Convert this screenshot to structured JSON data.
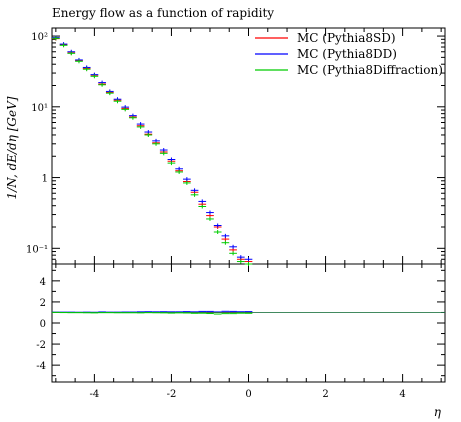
{
  "chart_data": {
    "type": "scatter",
    "title": "Energy flow as a function of rapidity",
    "xlabel": "η",
    "ylabel": "1/N, dE/dη [GeV]",
    "xlim": [
      -5.1,
      5.1
    ],
    "ylim": [
      0.06,
      130
    ],
    "yscale": "log",
    "legend_position": "top-right",
    "x": [
      -5.0,
      -4.8,
      -4.6,
      -4.4,
      -4.2,
      -4.0,
      -3.8,
      -3.6,
      -3.4,
      -3.2,
      -3.0,
      -2.8,
      -2.6,
      -2.4,
      -2.2,
      -2.0,
      -1.8,
      -1.6,
      -1.4,
      -1.2,
      -1.0,
      -0.8,
      -0.6,
      -0.4,
      -0.2,
      0.0
    ],
    "series": [
      {
        "name": "MC (Pythia8SD)",
        "color": "#ff0000",
        "values": [
          92,
          75,
          58,
          45,
          35,
          28,
          21,
          16,
          12.4,
          9.5,
          7.2,
          5.4,
          4.1,
          3.1,
          2.3,
          1.7,
          1.25,
          0.88,
          0.62,
          0.42,
          0.29,
          0.2,
          0.135,
          0.095,
          0.07,
          0.065
        ]
      },
      {
        "name": "MC (Pythia8DD)",
        "color": "#0000ff",
        "values": [
          95,
          77,
          60,
          46,
          36,
          28.5,
          22,
          16.5,
          12.8,
          9.9,
          7.5,
          5.7,
          4.4,
          3.3,
          2.45,
          1.8,
          1.33,
          0.95,
          0.66,
          0.46,
          0.32,
          0.21,
          0.15,
          0.105,
          0.075,
          0.07
        ]
      },
      {
        "name": "MC (Pythia8Diffraction)",
        "color": "#00cc00",
        "values": [
          93,
          74,
          57,
          44,
          34,
          27,
          20.5,
          15.6,
          12,
          9.2,
          7,
          5.2,
          4,
          3,
          2.2,
          1.6,
          1.2,
          0.84,
          0.57,
          0.39,
          0.26,
          0.17,
          0.12,
          0.085,
          0.065,
          0.06
        ]
      }
    ],
    "ratio": {
      "ylim": [
        -5.6,
        5.6
      ],
      "yticks": [
        "4",
        "2",
        "0",
        "-2",
        "-4"
      ],
      "series": [
        {
          "name": "MC (Pythia8SD)",
          "color": "#ff0000",
          "values": [
            1,
            1,
            1,
            1,
            1,
            1,
            1,
            1,
            1,
            1,
            1,
            1,
            1,
            1,
            1,
            1,
            1,
            1,
            1,
            1,
            1,
            1,
            1,
            1,
            1,
            1
          ]
        },
        {
          "name": "MC (Pythia8DD)",
          "color": "#0000ff",
          "values": [
            1.03,
            1.03,
            1.03,
            1.02,
            1.03,
            1.02,
            1.05,
            1.03,
            1.03,
            1.04,
            1.04,
            1.06,
            1.07,
            1.06,
            1.07,
            1.06,
            1.06,
            1.08,
            1.06,
            1.1,
            1.1,
            1.05,
            1.11,
            1.1,
            1.07,
            1.08
          ]
        },
        {
          "name": "MC (Pythia8Diffraction)",
          "color": "#00cc00",
          "values": [
            1.01,
            0.99,
            0.98,
            0.98,
            0.97,
            0.96,
            0.98,
            0.98,
            0.97,
            0.97,
            0.97,
            0.96,
            0.98,
            0.97,
            0.96,
            0.94,
            0.96,
            0.95,
            0.92,
            0.93,
            0.9,
            0.85,
            0.89,
            0.89,
            0.93,
            0.92
          ]
        }
      ]
    },
    "xticks": [
      "-4",
      "-2",
      "0",
      "2",
      "4"
    ],
    "yticks_main": [
      "10²",
      "10¹",
      "1",
      "10⁻¹"
    ]
  }
}
